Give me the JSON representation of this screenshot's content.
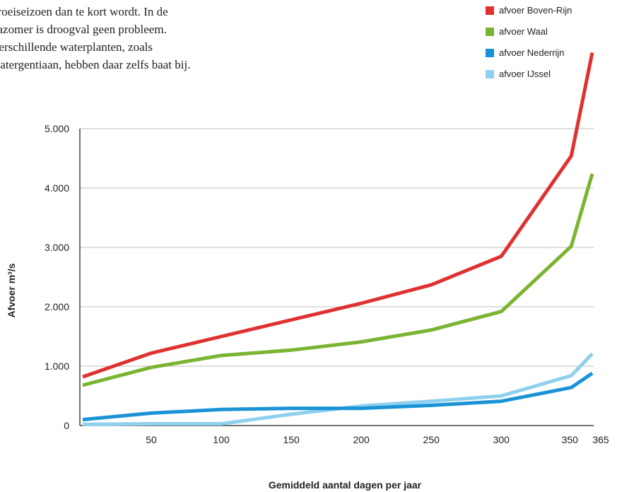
{
  "intro": {
    "lines": [
      "groeiseizoen dan te kort wordt. In de",
      "nazomer is droogval geen probleem.",
      "Verschillende waterplanten, zoals",
      "watergentiaan, hebben daar zelfs baat bij."
    ]
  },
  "colors": {
    "boven_rijn": "#e03131",
    "waal": "#7ab431",
    "nederrijn": "#1a93d6",
    "ijssel": "#8fd0ee",
    "grid": "#bdbdbd",
    "axis": "#222222"
  },
  "chart_data": {
    "type": "line",
    "title": "",
    "xlabel": "Gemiddeld aantal dagen per jaar",
    "ylabel": "Afvoer m³/s",
    "xlim": [
      0,
      365
    ],
    "ylim": [
      0,
      5000
    ],
    "x_ticks": [
      50,
      100,
      150,
      200,
      250,
      300,
      350,
      365
    ],
    "x_tick_labels": [
      "50",
      "100",
      "150",
      "200",
      "250",
      "300",
      "350",
      "365"
    ],
    "y_ticks": [
      0,
      1000,
      2000,
      3000,
      4000,
      5000
    ],
    "y_tick_labels": [
      "0",
      "1.000",
      "2.000",
      "3.000",
      "4.000",
      "5.000"
    ],
    "grid": "horizontal",
    "legend_position": "top-right",
    "x": [
      1,
      50,
      100,
      150,
      200,
      250,
      300,
      350,
      365
    ],
    "series": [
      {
        "name": "afvoer Boven-Rijn",
        "color": "#e03131",
        "values": [
          820,
          1220,
          1500,
          1780,
          2060,
          2370,
          2850,
          4540,
          6280
        ]
      },
      {
        "name": "afvoer Waal",
        "color": "#7ab431",
        "values": [
          680,
          980,
          1180,
          1270,
          1410,
          1610,
          1920,
          3020,
          4240
        ]
      },
      {
        "name": "afvoer Nederrijn",
        "color": "#1a93d6",
        "values": [
          100,
          210,
          270,
          290,
          290,
          340,
          410,
          640,
          880
        ]
      },
      {
        "name": "afvoer IJssel",
        "color": "#8fd0ee",
        "values": [
          20,
          30,
          30,
          190,
          330,
          410,
          500,
          840,
          1210
        ]
      }
    ]
  }
}
